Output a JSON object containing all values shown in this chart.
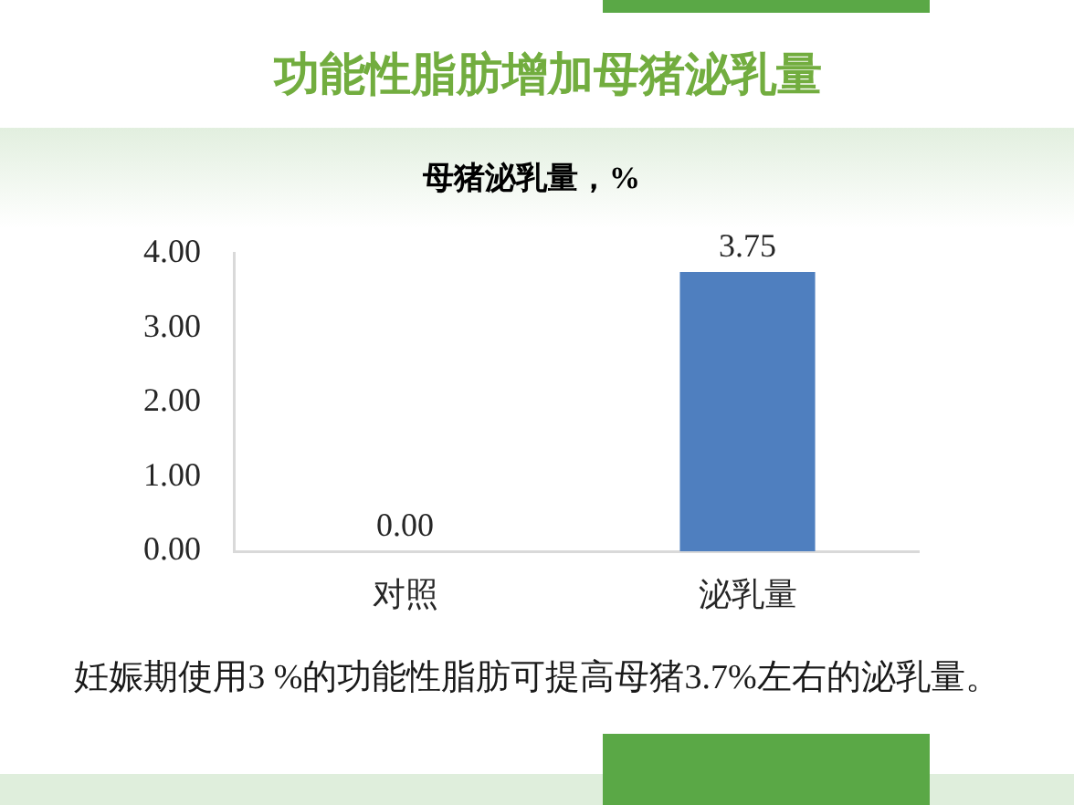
{
  "chart_data": {
    "type": "bar",
    "title": "功能性脂肪增加母猪泌乳量",
    "subtitle": "母猪泌乳量，%",
    "categories": [
      "对照",
      "泌乳量"
    ],
    "values": [
      0,
      3.75
    ],
    "color": "#4f7fbf",
    "value_labels": [
      "0.00",
      "3.75"
    ],
    "ylim": [
      0,
      4
    ],
    "yticks": [
      {
        "value": 0,
        "label": "0.00"
      },
      {
        "value": 1,
        "label": "1.00"
      },
      {
        "value": 2,
        "label": "2.00"
      },
      {
        "value": 3,
        "label": "3.00"
      },
      {
        "value": 4,
        "label": "4.00"
      }
    ],
    "annotations": [
      "妊娠期使用3 %的功能性脂肪可提高母猪3.7%左右的泌乳量。"
    ]
  }
}
